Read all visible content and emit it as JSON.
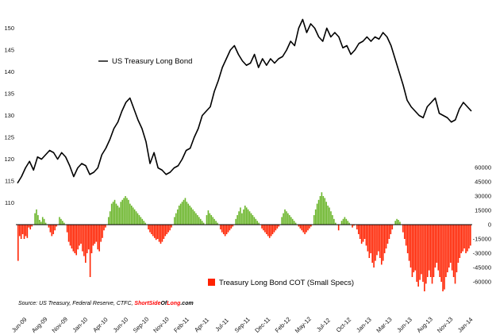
{
  "chart_data": {
    "type": "line+bar",
    "series": [
      {
        "name": "US Treasury Long Bond",
        "type": "line",
        "color": "#000000",
        "ylim": [
          105,
          155
        ],
        "yticks": [
          110,
          115,
          120,
          125,
          130,
          135,
          140,
          145,
          150
        ],
        "x": [
          "2009-06",
          "2009-06-15",
          "2009-07",
          "2009-07-15",
          "2009-08",
          "2009-08-15",
          "2009-09",
          "2009-09-15",
          "2009-10",
          "2009-10-15",
          "2009-11",
          "2009-11-15",
          "2009-12",
          "2009-12-15",
          "2010-01",
          "2010-01-15",
          "2010-02",
          "2010-02-15",
          "2010-03",
          "2010-03-15",
          "2010-04",
          "2010-04-15",
          "2010-05",
          "2010-05-15",
          "2010-06",
          "2010-06-15",
          "2010-07",
          "2010-07-15",
          "2010-08",
          "2010-08-15",
          "2010-09",
          "2010-09-15",
          "2010-10",
          "2010-10-15",
          "2010-11",
          "2010-11-15",
          "2010-12",
          "2010-12-15",
          "2011-01",
          "2011-01-15",
          "2011-02",
          "2011-02-15",
          "2011-03",
          "2011-03-15",
          "2011-04",
          "2011-04-15",
          "2011-05",
          "2011-05-15",
          "2011-06",
          "2011-06-15",
          "2011-07",
          "2011-07-15",
          "2011-08",
          "2011-08-15",
          "2011-09",
          "2011-09-15",
          "2011-10",
          "2011-10-15",
          "2011-11",
          "2011-11-15",
          "2011-12",
          "2011-12-15",
          "2012-01",
          "2012-01-15",
          "2012-02",
          "2012-02-15",
          "2012-03",
          "2012-03-15",
          "2012-04",
          "2012-04-15",
          "2012-05",
          "2012-05-15",
          "2012-06",
          "2012-06-15",
          "2012-07",
          "2012-07-15",
          "2012-08",
          "2012-08-15",
          "2012-09",
          "2012-09-15",
          "2012-10",
          "2012-10-15",
          "2012-11",
          "2012-11-15",
          "2012-12",
          "2012-12-15",
          "2013-01",
          "2013-01-15",
          "2013-02",
          "2013-02-15",
          "2013-03",
          "2013-03-15",
          "2013-04",
          "2013-04-15",
          "2013-05",
          "2013-05-15",
          "2013-06",
          "2013-06-15",
          "2013-07",
          "2013-07-15",
          "2013-08",
          "2013-08-15",
          "2013-09",
          "2013-09-15",
          "2013-10",
          "2013-10-15",
          "2013-11",
          "2013-11-15",
          "2013-12",
          "2013-12-15",
          "2014-01",
          "2014-01-15",
          "2014-02",
          "2014-02-15"
        ],
        "values": [
          114.5,
          116,
          118,
          119.5,
          117.5,
          120.5,
          120,
          121,
          122,
          121.5,
          120,
          121.5,
          120.5,
          118.5,
          116,
          118,
          119,
          118.5,
          116.5,
          117,
          118,
          121,
          122.5,
          124.5,
          127,
          128.5,
          131,
          133,
          134,
          131.5,
          129,
          127,
          124,
          119,
          121.5,
          118,
          117.5,
          116.5,
          117,
          118,
          118.5,
          120,
          122,
          122.5,
          125,
          127,
          130,
          131,
          132,
          135.5,
          138,
          141,
          143,
          145,
          146,
          144,
          142.5,
          141.5,
          142,
          144,
          141,
          143,
          141.5,
          143,
          142,
          143,
          143.5,
          145,
          147,
          146,
          150,
          152,
          149,
          151,
          150,
          148,
          147,
          150,
          148,
          149,
          148,
          145.5,
          146,
          144,
          145,
          146.5,
          147,
          148,
          147,
          148,
          147.5,
          149,
          148,
          146,
          143,
          140,
          137,
          133.5,
          132,
          131,
          130,
          129.5,
          132,
          133,
          134,
          130.5,
          130,
          129.5,
          128.5,
          129,
          131.5,
          133,
          132,
          131
        ]
      },
      {
        "name": "Treasury Long Bond COT (Small Specs)",
        "type": "bar",
        "color_positive": "#6ab52a",
        "color_negative": "#ff2200",
        "ylim": [
          -75000,
          75000
        ],
        "yticks": [
          60000,
          45000,
          30000,
          15000,
          0,
          -15000,
          -30000,
          -45000,
          -60000
        ],
        "x_start": "2009-06",
        "x_step": "weekly",
        "values": [
          -38000,
          -12000,
          -15000,
          -10000,
          -15000,
          -12000,
          -14000,
          -3000,
          -5000,
          -2000,
          0,
          12000,
          16000,
          10000,
          5000,
          3000,
          8000,
          6000,
          2000,
          0,
          -3000,
          -8000,
          -12000,
          -10000,
          -6000,
          -2000,
          0,
          8000,
          6000,
          4000,
          2000,
          0,
          -8000,
          -18000,
          -22000,
          -25000,
          -28000,
          -30000,
          -32000,
          -26000,
          -22000,
          -20000,
          -28000,
          -33000,
          -40000,
          -30000,
          -26000,
          -55000,
          -30000,
          -22000,
          -20000,
          -18000,
          -26000,
          -28000,
          -18000,
          -14000,
          -6000,
          -3000,
          0,
          8000,
          14000,
          22000,
          24000,
          26000,
          22000,
          20000,
          18000,
          24000,
          26000,
          28000,
          30000,
          28000,
          26000,
          22000,
          20000,
          18000,
          16000,
          14000,
          12000,
          10000,
          8000,
          6000,
          4000,
          2000,
          0,
          -5000,
          -8000,
          -10000,
          -12000,
          -14000,
          -16000,
          -15000,
          -18000,
          -20000,
          -18000,
          -15000,
          -12000,
          -10000,
          -8000,
          -6000,
          -3000,
          0,
          8000,
          12000,
          16000,
          20000,
          22000,
          24000,
          26000,
          28000,
          24000,
          22000,
          20000,
          18000,
          16000,
          14000,
          12000,
          10000,
          8000,
          6000,
          4000,
          2000,
          0,
          10000,
          15000,
          12000,
          10000,
          8000,
          6000,
          4000,
          2000,
          0,
          -5000,
          -8000,
          -10000,
          -12000,
          -10000,
          -8000,
          -6000,
          -4000,
          -2000,
          0,
          6000,
          10000,
          14000,
          18000,
          12000,
          16000,
          20000,
          18000,
          16000,
          14000,
          12000,
          10000,
          8000,
          6000,
          4000,
          2000,
          0,
          -4000,
          -6000,
          -8000,
          -10000,
          -12000,
          -14000,
          -12000,
          -10000,
          -8000,
          -6000,
          -4000,
          -2000,
          0,
          8000,
          12000,
          16000,
          14000,
          12000,
          10000,
          8000,
          6000,
          4000,
          2000,
          0,
          -2000,
          -4000,
          -6000,
          -8000,
          -10000,
          -8000,
          -6000,
          -4000,
          -2000,
          0,
          10000,
          16000,
          22000,
          26000,
          30000,
          34000,
          30000,
          28000,
          24000,
          20000,
          18000,
          14000,
          10000,
          6000,
          2000,
          0,
          -6000,
          0,
          4000,
          6000,
          8000,
          6000,
          4000,
          2000,
          0,
          -3000,
          -1000,
          0,
          -5000,
          -10000,
          -15000,
          -20000,
          -18000,
          -15000,
          -22000,
          -28000,
          -35000,
          -30000,
          -40000,
          -45000,
          -38000,
          -32000,
          -28000,
          -35000,
          -42000,
          -38000,
          -30000,
          -25000,
          -20000,
          -15000,
          -10000,
          -5000,
          0,
          4000,
          6000,
          5000,
          3000,
          0,
          -8000,
          -15000,
          -22000,
          -30000,
          -38000,
          -45000,
          -55000,
          -50000,
          -48000,
          -60000,
          -65000,
          -58000,
          -52000,
          -60000,
          -70000,
          -62000,
          -55000,
          -48000,
          -55000,
          -62000,
          -55000,
          -45000,
          -40000,
          -48000,
          -55000,
          -60000,
          -70000,
          -68000,
          -55000,
          -50000,
          -45000,
          -40000,
          -48000,
          -55000,
          -62000,
          -50000,
          -40000,
          -35000,
          -30000,
          -28000,
          -25000,
          -30000,
          -28000,
          -25000,
          -22000
        ]
      }
    ],
    "x_tick_labels": [
      "Jun-09",
      "Aug-09",
      "Nov-09",
      "Jan-10",
      "Apr-10",
      "Jun-10",
      "Sep-10",
      "Nov-10",
      "Feb-11",
      "Apr-11",
      "Jul-11",
      "Sep-11",
      "Dec-11",
      "Feb-12",
      "May-12",
      "Jul-12",
      "Oct-12",
      "Jan-13",
      "Mar-13",
      "Jun-13",
      "Aug-13",
      "Nov-13",
      "Jan-14"
    ],
    "grid": false
  },
  "legend": {
    "line_label": "US Treasury Long Bond",
    "bar_label": "Treasury Long Bond COT (Small Specs)"
  },
  "source": {
    "prefix": "Source: US Treasury, Federal Reserve, CTFC, ",
    "brand_a": "ShortSide",
    "brand_b": "Of",
    "brand_c": "Long",
    "brand_d": ".com",
    "brand_color_primary": "#ff0000",
    "brand_color_secondary": "#000000"
  }
}
